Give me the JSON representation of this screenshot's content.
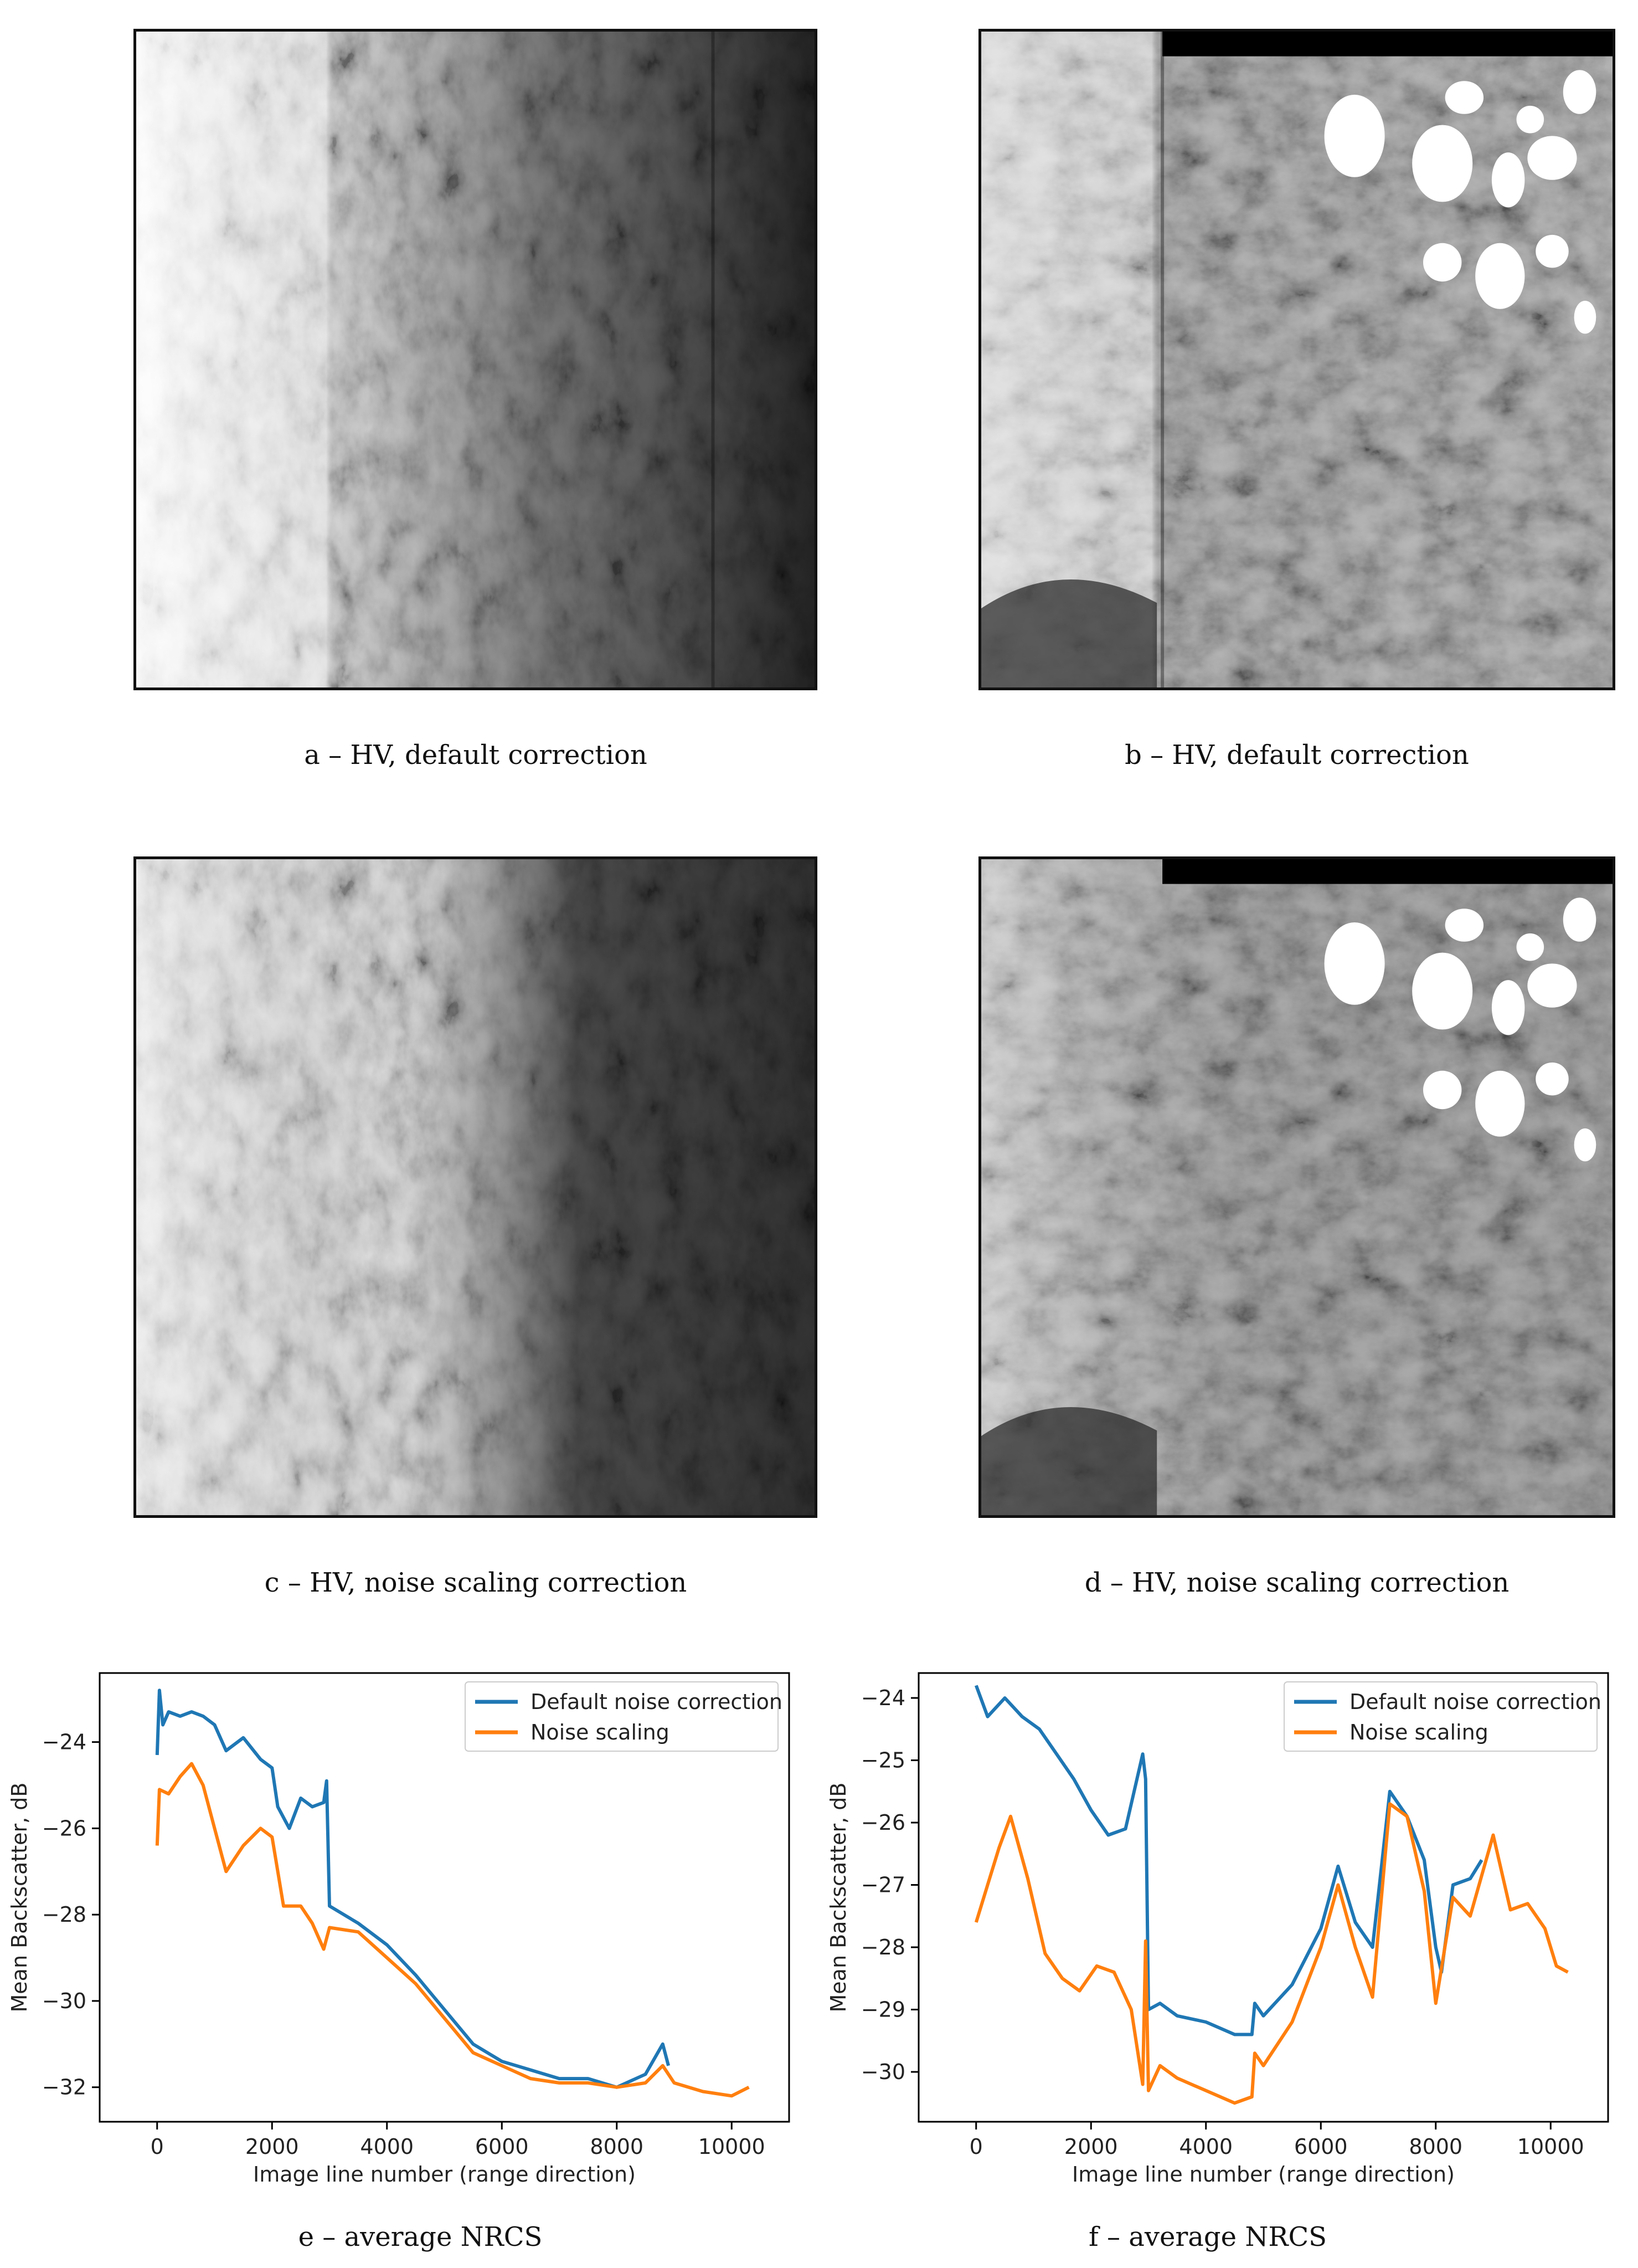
{
  "captions": {
    "a": "a – HV, default correction",
    "b": "b – HV, default correction",
    "c": "c – HV, noise scaling correction",
    "d": "d – HV, noise scaling correction",
    "e": "e – average NRCS",
    "f": "f – average NRCS"
  },
  "chart_data": [
    {
      "type": "line",
      "xlabel": "Image line number (range direction)",
      "ylabel": "Mean Backscatter, dB",
      "xlim": [
        -1000,
        11000
      ],
      "ylim": [
        -32.8,
        -22.4
      ],
      "xticks": [
        0,
        2000,
        4000,
        6000,
        8000,
        10000
      ],
      "yticks": [
        -32,
        -30,
        -28,
        -26,
        -24
      ],
      "ytick_labels": [
        "−32",
        "−30",
        "−28",
        "−26",
        "−24"
      ],
      "legend": "top-right",
      "series": [
        {
          "name": "Default noise correction",
          "color": "#1f77b4",
          "x": [
            0,
            40,
            100,
            200,
            400,
            600,
            800,
            1000,
            1200,
            1500,
            1800,
            2000,
            2100,
            2300,
            2500,
            2700,
            2900,
            2950,
            3000,
            3500,
            4000,
            4500,
            5000,
            5500,
            6000,
            6500,
            7000,
            7500,
            8000,
            8500,
            8800,
            8900
          ],
          "y": [
            -24.3,
            -22.8,
            -23.6,
            -23.3,
            -23.4,
            -23.3,
            -23.4,
            -23.6,
            -24.2,
            -23.9,
            -24.4,
            -24.6,
            -25.5,
            -26.0,
            -25.3,
            -25.5,
            -25.4,
            -24.9,
            -27.8,
            -28.2,
            -28.7,
            -29.4,
            -30.2,
            -31.0,
            -31.4,
            -31.6,
            -31.8,
            -31.8,
            -32.0,
            -31.7,
            -31.0,
            -31.5
          ]
        },
        {
          "name": "Noise scaling",
          "color": "#ff7f0e",
          "x": [
            0,
            40,
            200,
            400,
            600,
            800,
            1000,
            1200,
            1500,
            1800,
            2000,
            2200,
            2500,
            2700,
            2900,
            3000,
            3500,
            4000,
            4500,
            5000,
            5500,
            6000,
            6500,
            7000,
            7500,
            8000,
            8500,
            8800,
            9000,
            9500,
            10000,
            10300
          ],
          "y": [
            -26.4,
            -25.1,
            -25.2,
            -24.8,
            -24.5,
            -25.0,
            -26.0,
            -27.0,
            -26.4,
            -26.0,
            -26.2,
            -27.8,
            -27.8,
            -28.2,
            -28.8,
            -28.3,
            -28.4,
            -29.0,
            -29.6,
            -30.4,
            -31.2,
            -31.5,
            -31.8,
            -31.9,
            -31.9,
            -32.0,
            -31.9,
            -31.5,
            -31.9,
            -32.1,
            -32.2,
            -32.0
          ]
        }
      ]
    },
    {
      "type": "line",
      "xlabel": "Image line number (range direction)",
      "ylabel": "Mean Backscatter, dB",
      "xlim": [
        -1000,
        11000
      ],
      "ylim": [
        -30.8,
        -23.6
      ],
      "xticks": [
        0,
        2000,
        4000,
        6000,
        8000,
        10000
      ],
      "yticks": [
        -30,
        -29,
        -28,
        -27,
        -26,
        -25,
        -24
      ],
      "ytick_labels": [
        "−30",
        "−29",
        "−28",
        "−27",
        "−26",
        "−25",
        "−24"
      ],
      "legend": "top-right",
      "series": [
        {
          "name": "Default noise correction",
          "color": "#1f77b4",
          "x": [
            0,
            200,
            500,
            800,
            1100,
            1400,
            1700,
            2000,
            2300,
            2600,
            2900,
            2950,
            3000,
            3200,
            3500,
            4000,
            4500,
            4800,
            4850,
            5000,
            5500,
            6000,
            6300,
            6600,
            6900,
            7200,
            7500,
            7800,
            8000,
            8100,
            8300,
            8600,
            8800
          ],
          "y": [
            -23.8,
            -24.3,
            -24.0,
            -24.3,
            -24.5,
            -24.9,
            -25.3,
            -25.8,
            -26.2,
            -26.1,
            -24.9,
            -25.3,
            -29.0,
            -28.9,
            -29.1,
            -29.2,
            -29.4,
            -29.4,
            -28.9,
            -29.1,
            -28.6,
            -27.7,
            -26.7,
            -27.6,
            -28.0,
            -25.5,
            -25.9,
            -26.6,
            -28.0,
            -28.4,
            -27.0,
            -26.9,
            -26.6
          ]
        },
        {
          "name": "Noise scaling",
          "color": "#ff7f0e",
          "x": [
            0,
            200,
            400,
            600,
            900,
            1200,
            1500,
            1800,
            2100,
            2400,
            2700,
            2900,
            2950,
            3000,
            3200,
            3500,
            4000,
            4500,
            4800,
            4850,
            5000,
            5500,
            6000,
            6300,
            6600,
            6900,
            7200,
            7500,
            7800,
            8000,
            8300,
            8600,
            9000,
            9300,
            9600,
            9900,
            10100,
            10300
          ],
          "y": [
            -27.6,
            -27.0,
            -26.4,
            -25.9,
            -26.9,
            -28.1,
            -28.5,
            -28.7,
            -28.3,
            -28.4,
            -29.0,
            -30.2,
            -27.9,
            -30.3,
            -29.9,
            -30.1,
            -30.3,
            -30.5,
            -30.4,
            -29.7,
            -29.9,
            -29.2,
            -28.0,
            -27.0,
            -28.0,
            -28.8,
            -25.7,
            -25.9,
            -27.1,
            -28.9,
            -27.2,
            -27.5,
            -26.2,
            -27.4,
            -27.3,
            -27.7,
            -28.3,
            -28.4
          ]
        }
      ]
    }
  ]
}
